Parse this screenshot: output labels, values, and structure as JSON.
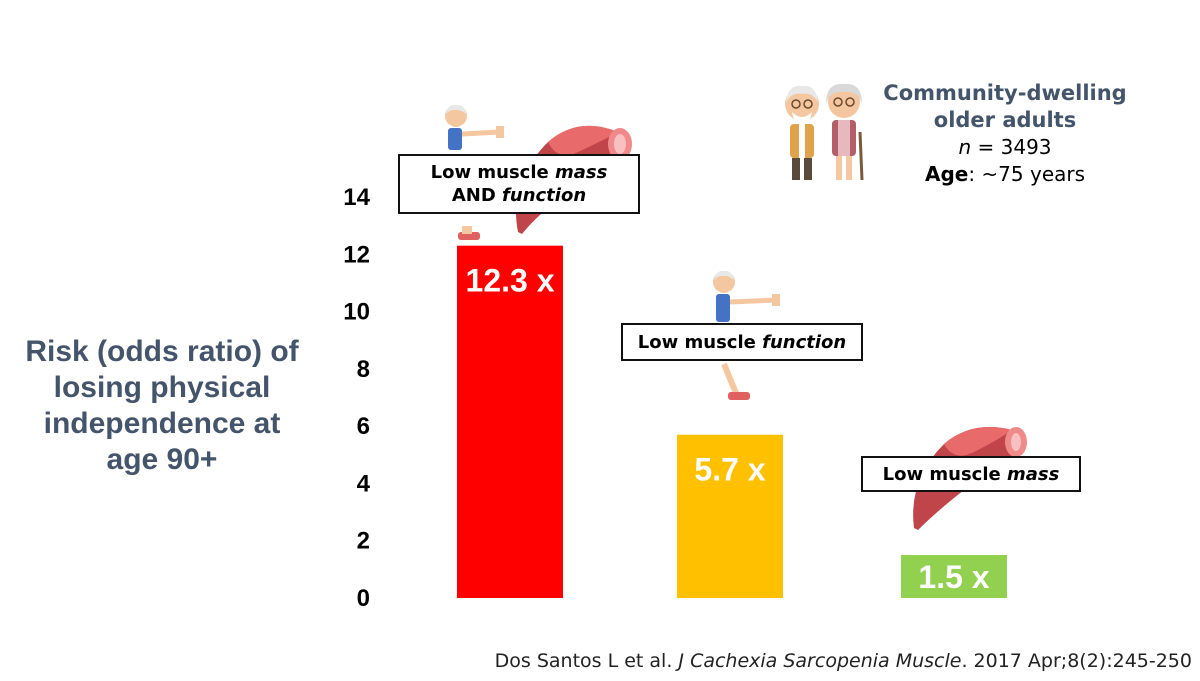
{
  "chart_data": {
    "type": "bar",
    "categories": [
      "Low muscle mass AND function",
      "Low muscle function",
      "Low muscle mass"
    ],
    "values": [
      12.3,
      5.7,
      1.5
    ],
    "data_labels": [
      "12.3 x",
      "5.7 x",
      "1.5 x"
    ],
    "colors": [
      "#ff0000",
      "#ffc000",
      "#92d050"
    ],
    "ylabel": "Risk (odds ratio) of losing physical independence at age 90+",
    "ylim": [
      0,
      14
    ],
    "yticks": [
      0,
      2,
      4,
      6,
      8,
      10,
      12,
      14
    ],
    "grid": false
  },
  "labels": {
    "bar1": {
      "line1_a": "Low muscle ",
      "line1_b": "mass",
      "line2_a": "AND ",
      "line2_b": "function"
    },
    "bar2": {
      "a": "Low muscle ",
      "b": "function"
    },
    "bar3": {
      "a": "Low muscle ",
      "b": "mass"
    }
  },
  "ylabel_lines": [
    "Risk (odds ratio) of",
    "losing physical",
    "independence at",
    "age 90+"
  ],
  "study": {
    "population_line1": "Community-dwelling",
    "population_line2": "older adults",
    "n_label": "n",
    "n_value": " = 3493",
    "age_label": "Age",
    "age_value": ": ~75 years"
  },
  "citation": {
    "authors": "Dos Santos L et al. ",
    "journal": "J Cachexia Sarcopenia Muscle",
    "details": ". 2017 Apr;8(2):245-250"
  },
  "icons": [
    "elderly-couple-icon",
    "exercising-elderly-man-icon",
    "muscle-icon"
  ]
}
